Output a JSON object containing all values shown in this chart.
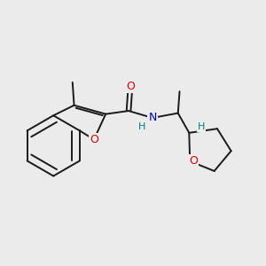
{
  "background_color": "#ebebeb",
  "bond_color": "#1a1a1a",
  "atom_colors": {
    "O": "#e00000",
    "N": "#0000cc",
    "H": "#008080",
    "C": "#1a1a1a"
  },
  "figsize": [
    3.0,
    3.0
  ],
  "dpi": 100
}
